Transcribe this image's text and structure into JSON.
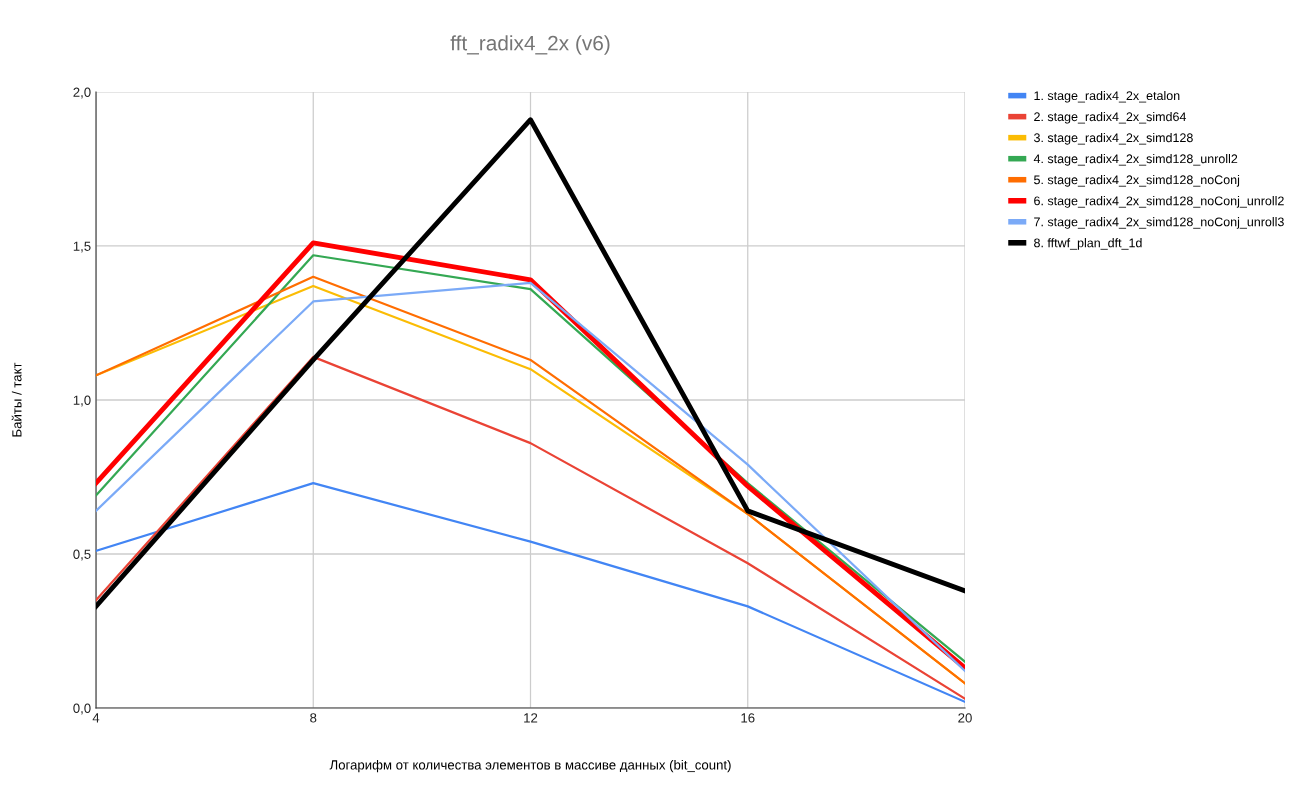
{
  "chart_data": {
    "type": "line",
    "title": "fft_radix4_2x (v6)",
    "xlabel": "Логарифм от количества элементов в массиве данных (bit_count)",
    "ylabel": "Байты / такт",
    "x": [
      4,
      8,
      12,
      16,
      20
    ],
    "xlim": [
      4,
      20
    ],
    "xticks": [
      4,
      8,
      12,
      16,
      20
    ],
    "ylim": [
      0,
      2
    ],
    "yticks": [
      {
        "value": 0,
        "label": "0,0"
      },
      {
        "value": 0.5,
        "label": "0,5"
      },
      {
        "value": 1,
        "label": "1,0"
      },
      {
        "value": 1.5,
        "label": "1,5"
      },
      {
        "value": 2,
        "label": "2,0"
      }
    ],
    "grid": true,
    "legend": "right",
    "marker": "none",
    "line_style": "solid",
    "series": [
      {
        "name": "1. stage_radix4_2x_etalon",
        "color": "#4285f4",
        "values": [
          0.51,
          0.73,
          0.54,
          0.33,
          0.02
        ]
      },
      {
        "name": "2. stage_radix4_2x_simd64",
        "color": "#ea4335",
        "values": [
          0.35,
          1.14,
          0.86,
          0.47,
          0.03
        ]
      },
      {
        "name": "3. stage_radix4_2x_simd128",
        "color": "#fbbc04",
        "values": [
          1.08,
          1.37,
          1.1,
          0.63,
          0.08
        ]
      },
      {
        "name": "4. stage_radix4_2x_simd128_unroll2",
        "color": "#34a853",
        "values": [
          0.69,
          1.47,
          1.36,
          0.73,
          0.15
        ]
      },
      {
        "name": "5. stage_radix4_2x_simd128_noConj",
        "color": "#ff6d01",
        "values": [
          1.08,
          1.4,
          1.13,
          0.63,
          0.08
        ]
      },
      {
        "name": "6. stage_radix4_2x_simd128_noConj_unroll2",
        "color": "#ff0000",
        "values": [
          0.73,
          1.51,
          1.39,
          0.72,
          0.13
        ]
      },
      {
        "name": "7. stage_radix4_2x_simd128_noConj_unroll3",
        "color": "#7baaf7",
        "values": [
          0.64,
          1.32,
          1.38,
          0.79,
          0.12
        ]
      },
      {
        "name": "8. fftwf_plan_dft_1d",
        "color": "#000000",
        "values": [
          0.33,
          1.13,
          1.91,
          0.64,
          0.38
        ]
      }
    ]
  }
}
